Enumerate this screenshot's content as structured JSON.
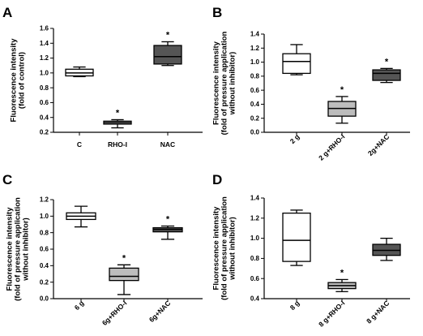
{
  "chart_data": [
    {
      "type": "box",
      "panel_label": "A",
      "ylabel_lines": [
        "Fluorescence intensity",
        "(fold of control)"
      ],
      "ylim": [
        0.2,
        1.6
      ],
      "yticks": [
        "0.2",
        "0.4",
        "0.6",
        "0.8",
        "1.0",
        "1.2",
        "1.4",
        "1.6"
      ],
      "categories": [
        "C",
        "RHO-I",
        "NAC"
      ],
      "boxes": [
        {
          "min": 0.95,
          "q1": 0.96,
          "median": 1.0,
          "q3": 1.05,
          "max": 1.08,
          "fill": "#ffffff",
          "star": false
        },
        {
          "min": 0.26,
          "q1": 0.31,
          "median": 0.33,
          "q3": 0.35,
          "max": 0.37,
          "fill": "#bdbdbd",
          "star": true
        },
        {
          "min": 1.1,
          "q1": 1.12,
          "median": 1.22,
          "q3": 1.37,
          "max": 1.42,
          "fill": "#555555",
          "star": true
        }
      ],
      "star_symbol": "*"
    },
    {
      "type": "box",
      "panel_label": "B",
      "ylabel_lines": [
        "Fluorescence intensity",
        "(fold of pressure application",
        "without inhibitor)"
      ],
      "ylim": [
        0.0,
        1.4
      ],
      "yticks": [
        "0.0",
        "0.2",
        "0.4",
        "0.6",
        "0.8",
        "1.0",
        "1.2",
        "1.4"
      ],
      "categories": [
        "2 g",
        "2 g+RHO-I",
        "2g+NAC"
      ],
      "boxes": [
        {
          "min": 0.82,
          "q1": 0.84,
          "median": 1.01,
          "q3": 1.12,
          "max": 1.25,
          "fill": "#ffffff",
          "star": false
        },
        {
          "min": 0.13,
          "q1": 0.23,
          "median": 0.34,
          "q3": 0.44,
          "max": 0.51,
          "fill": "#bdbdbd",
          "star": true
        },
        {
          "min": 0.71,
          "q1": 0.74,
          "median": 0.84,
          "q3": 0.89,
          "max": 0.91,
          "fill": "#555555",
          "star": true
        }
      ],
      "star_symbol": "*"
    },
    {
      "type": "box",
      "panel_label": "C",
      "ylabel_lines": [
        "Fluorescence intensity",
        "(fold of pressure application",
        "without inhibitor)"
      ],
      "ylim": [
        0.0,
        1.2
      ],
      "yticks": [
        "0.0",
        "0.2",
        "0.4",
        "0.6",
        "0.8",
        "1.0",
        "1.2"
      ],
      "categories": [
        "6 g",
        "6g+RHO-I",
        "6g+NAC"
      ],
      "boxes": [
        {
          "min": 0.87,
          "q1": 0.96,
          "median": 1.0,
          "q3": 1.04,
          "max": 1.12,
          "fill": "#ffffff",
          "star": false
        },
        {
          "min": 0.05,
          "q1": 0.22,
          "median": 0.27,
          "q3": 0.37,
          "max": 0.41,
          "fill": "#bdbdbd",
          "star": true
        },
        {
          "min": 0.72,
          "q1": 0.81,
          "median": 0.84,
          "q3": 0.86,
          "max": 0.88,
          "fill": "#555555",
          "star": true
        }
      ],
      "star_symbol": "*"
    },
    {
      "type": "box",
      "panel_label": "D",
      "ylabel_lines": [
        "Fluorescence intensity",
        "(fold of pressure application",
        "without inhibitor)"
      ],
      "ylim": [
        0.4,
        1.4
      ],
      "yticks": [
        "0.4",
        "0.6",
        "0.8",
        "1.0",
        "1.2",
        "1.4"
      ],
      "categories": [
        "8 g",
        "8 g+RHO-I",
        "8 g+NAC"
      ],
      "boxes": [
        {
          "min": 0.73,
          "q1": 0.77,
          "median": 0.98,
          "q3": 1.25,
          "max": 1.28,
          "fill": "#ffffff",
          "star": false
        },
        {
          "min": 0.47,
          "q1": 0.5,
          "median": 0.53,
          "q3": 0.56,
          "max": 0.59,
          "fill": "#bdbdbd",
          "star": true
        },
        {
          "min": 0.78,
          "q1": 0.83,
          "median": 0.88,
          "q3": 0.94,
          "max": 1.0,
          "fill": "#555555",
          "star": false
        }
      ],
      "star_symbol": "*"
    }
  ]
}
